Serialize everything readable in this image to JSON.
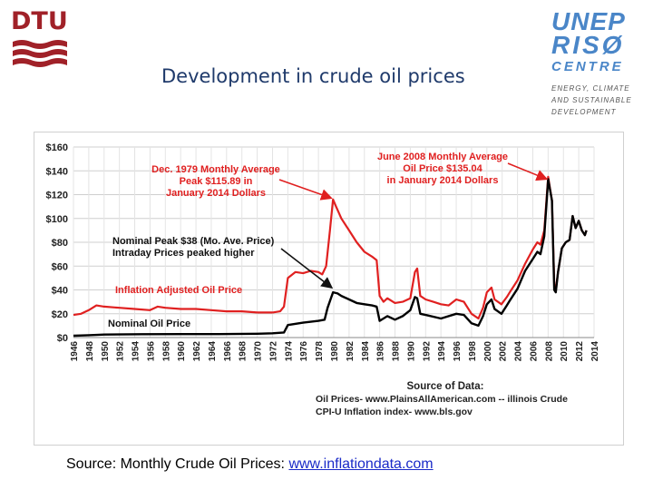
{
  "header": {
    "left_logo_text": "DTU",
    "title": "Development in crude oil prices",
    "right_logo": {
      "line1": "UNEP",
      "line2": "RISØ",
      "line3": "CENTRE",
      "tag1": "ENERGY, CLIMATE",
      "tag2": "AND SUSTAINABLE",
      "tag3": "DEVELOPMENT"
    }
  },
  "footer": {
    "source_label": "Source: Monthly Crude Oil Prices:",
    "source_link": "www.inflationdata.com"
  },
  "colors": {
    "title": "#1f3a6b",
    "inflation_series": "#e02020",
    "nominal_series": "#000000",
    "annotation_red": "#e02020",
    "dtu_red": "#a02128",
    "unep_blue": "#4a86c8"
  },
  "chart_data": {
    "type": "line",
    "title": "",
    "xlabel": "",
    "ylabel": "",
    "xlim": [
      1946,
      2014
    ],
    "ylim": [
      0,
      160
    ],
    "grid": true,
    "ytick_labels": [
      "$0",
      "$20",
      "$40",
      "$60",
      "$80",
      "$100",
      "$120",
      "$140",
      "$160"
    ],
    "ytick_values": [
      0,
      20,
      40,
      60,
      80,
      100,
      120,
      140,
      160
    ],
    "xtick_labels": [
      "1946",
      "1948",
      "1950",
      "1952",
      "1954",
      "1956",
      "1958",
      "1960",
      "1962",
      "1964",
      "1966",
      "1968",
      "1970",
      "1972",
      "1974",
      "1976",
      "1978",
      "1980",
      "1982",
      "1984",
      "1986",
      "1988",
      "1990",
      "1992",
      "1994",
      "1996",
      "1998",
      "2000",
      "2002",
      "2004",
      "2006",
      "2008",
      "2010",
      "2012",
      "2014"
    ],
    "series": [
      {
        "name": "Inflation Adjusted Oil Price",
        "x": [
          1946,
          1947,
          1948,
          1949,
          1950,
          1952,
          1954,
          1956,
          1957,
          1958,
          1960,
          1962,
          1964,
          1966,
          1968,
          1970,
          1972,
          1973,
          1973.5,
          1974,
          1975,
          1976,
          1977,
          1978,
          1978.5,
          1979,
          1979.5,
          1979.9,
          1980.3,
          1981,
          1982,
          1983,
          1984,
          1985,
          1985.6,
          1986,
          1986.5,
          1987,
          1988,
          1989,
          1990,
          1990.6,
          1990.9,
          1991.3,
          1992,
          1993,
          1994,
          1995,
          1996,
          1997,
          1998,
          1998.9,
          1999.5,
          2000,
          2000.6,
          2001,
          2001.9,
          2002.6,
          2003,
          2004,
          2005,
          2006,
          2006.6,
          2007,
          2007.5,
          2008.0,
          2008.5,
          2008.8,
          2009.0,
          2009.3,
          2009.8,
          2010.3,
          2010.8,
          2011.2,
          2011.6,
          2012.0,
          2012.4,
          2012.8,
          2013.0
        ],
        "values": [
          19,
          20,
          23,
          27,
          26,
          25,
          24,
          23,
          26,
          25,
          24,
          24,
          23,
          22,
          22,
          21,
          21,
          22,
          26,
          50,
          55,
          54,
          56,
          55,
          53,
          60,
          90,
          116,
          110,
          100,
          90,
          80,
          72,
          68,
          65,
          35,
          30,
          33,
          29,
          30,
          33,
          55,
          58,
          35,
          32,
          30,
          28,
          27,
          32,
          30,
          20,
          16,
          25,
          38,
          42,
          32,
          28,
          34,
          38,
          48,
          62,
          74,
          80,
          78,
          90,
          135,
          115,
          45,
          40,
          55,
          75,
          80,
          82,
          102,
          92,
          98,
          90,
          86,
          90
        ]
      },
      {
        "name": "Nominal Oil Price",
        "x": [
          1946,
          1948,
          1950,
          1955,
          1960,
          1965,
          1970,
          1972,
          1973.5,
          1974,
          1976,
          1978,
          1978.8,
          1979.2,
          1979.9,
          1980.5,
          1981,
          1982,
          1983,
          1984,
          1985,
          1985.6,
          1986,
          1987,
          1988,
          1989,
          1990,
          1990.6,
          1990.9,
          1991.3,
          1992,
          1994,
          1996,
          1997,
          1998,
          1998.9,
          1999.5,
          2000,
          2000.6,
          2001,
          2001.9,
          2002.6,
          2003,
          2004,
          2005,
          2006,
          2006.6,
          2007,
          2007.5,
          2008.0,
          2008.5,
          2008.8,
          2009.0,
          2009.3,
          2009.8,
          2010.3,
          2010.8,
          2011.2,
          2011.6,
          2012.0,
          2012.4,
          2012.8,
          2013.0
        ],
        "values": [
          1.5,
          2,
          2.5,
          2.8,
          2.9,
          2.9,
          3.2,
          3.6,
          4.3,
          10.5,
          12.5,
          14,
          15,
          25,
          38,
          37,
          35,
          32,
          29,
          28,
          27,
          26,
          14,
          18,
          15,
          18,
          23,
          34,
          33,
          20,
          19,
          16,
          20,
          19,
          12,
          10,
          18,
          28,
          32,
          24,
          20,
          27,
          31,
          41,
          56,
          66,
          72,
          70,
          85,
          133,
          115,
          40,
          38,
          55,
          75,
          80,
          82,
          102,
          92,
          98,
          90,
          86,
          90
        ]
      }
    ],
    "annotations": [
      {
        "text": "Dec. 1979 Monthly Average",
        "color": "red"
      },
      {
        "text": "Peak $115.89 in",
        "color": "red"
      },
      {
        "text": "January 2014 Dollars",
        "color": "red"
      },
      {
        "text": "June 2008 Monthly Average",
        "color": "red"
      },
      {
        "text": "Oil  Price $135.04",
        "color": "red"
      },
      {
        "text": "in January 2014 Dollars",
        "color": "red"
      },
      {
        "text": "Nominal Peak $38 (Mo. Ave. Price)",
        "color": "black"
      },
      {
        "text": "Intraday Prices peaked higher",
        "color": "black"
      },
      {
        "text": "Inflation Adjusted Oil Price",
        "color": "red"
      },
      {
        "text": "Nominal Oil Price",
        "color": "black"
      }
    ],
    "source_block": [
      "Source of Data:",
      "Oil Prices- www.PlainsAllAmerican.com -- illinois Crude",
      "CPI-U Inflation index-   www.bls.gov"
    ]
  }
}
